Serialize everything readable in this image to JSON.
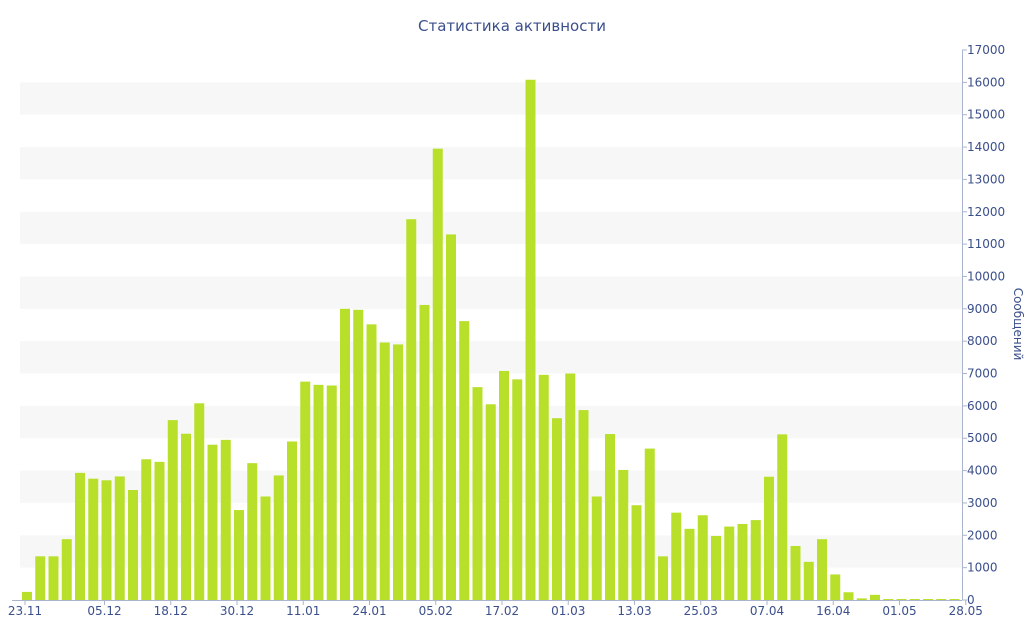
{
  "chart_data": {
    "type": "bar",
    "title": "Статистика активности",
    "xlabel": "",
    "ylabel": "Сообщений",
    "y_axis_side": "right",
    "ylim": [
      0,
      17000
    ],
    "y_ticks": [
      0,
      1000,
      2000,
      3000,
      4000,
      5000,
      6000,
      7000,
      8000,
      9000,
      10000,
      11000,
      12000,
      13000,
      14000,
      15000,
      16000,
      17000
    ],
    "x_tick_labels": [
      "23.11",
      "05.12",
      "18.12",
      "30.12",
      "11.01",
      "24.01",
      "05.02",
      "17.02",
      "01.03",
      "13.03",
      "25.03",
      "07.04",
      "16.04",
      "01.05",
      "28.05"
    ],
    "x_tick_positions": [
      0,
      6,
      11,
      16,
      21,
      26,
      31,
      36,
      41,
      46,
      51,
      56,
      61,
      66,
      71
    ],
    "bar_color": "#b8e02a",
    "band_color": "#f7f7f7",
    "grid": "alternating horizontal bands",
    "values": [
      250,
      1350,
      1350,
      1880,
      3930,
      3750,
      3700,
      3820,
      3400,
      4350,
      4270,
      5560,
      5140,
      6080,
      4800,
      4950,
      2780,
      4230,
      3200,
      3850,
      4900,
      6750,
      6650,
      6630,
      9000,
      8970,
      8520,
      7960,
      7900,
      11770,
      9120,
      13950,
      11300,
      8620,
      6580,
      6050,
      7080,
      6820,
      16080,
      6960,
      5620,
      7000,
      5870,
      3200,
      5130,
      4020,
      2930,
      4680,
      1350,
      2700,
      2200,
      2620,
      1980,
      2270,
      2350,
      2470,
      3810,
      5120,
      1670,
      1180,
      1880,
      790,
      240,
      50,
      160,
      30,
      30,
      30,
      30,
      30,
      30
    ]
  }
}
